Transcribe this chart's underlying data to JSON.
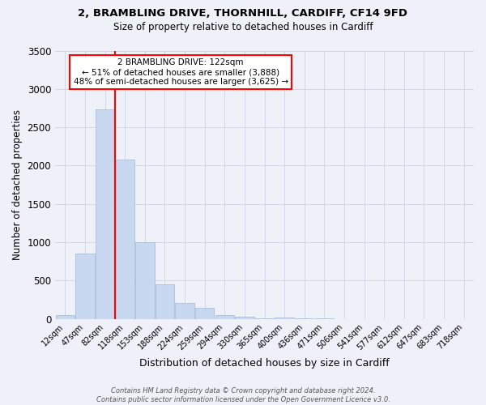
{
  "title1": "2, BRAMBLING DRIVE, THORNHILL, CARDIFF, CF14 9FD",
  "title2": "Size of property relative to detached houses in Cardiff",
  "xlabel": "Distribution of detached houses by size in Cardiff",
  "ylabel": "Number of detached properties",
  "bar_color": "#c8d8f0",
  "bar_edge_color": "#a0b8d8",
  "background_color": "#eef2f8",
  "grid_color": "#d0d8e8",
  "categories": [
    "12sqm",
    "47sqm",
    "82sqm",
    "118sqm",
    "153sqm",
    "188sqm",
    "224sqm",
    "259sqm",
    "294sqm",
    "330sqm",
    "365sqm",
    "400sqm",
    "436sqm",
    "471sqm",
    "506sqm",
    "541sqm",
    "577sqm",
    "612sqm",
    "647sqm",
    "683sqm",
    "718sqm"
  ],
  "values": [
    55,
    850,
    2730,
    2075,
    1005,
    455,
    210,
    145,
    55,
    25,
    10,
    20,
    10,
    5,
    0,
    0,
    0,
    0,
    0,
    0,
    0
  ],
  "ylim": [
    0,
    3500
  ],
  "yticks": [
    0,
    500,
    1000,
    1500,
    2000,
    2500,
    3000,
    3500
  ],
  "property_bin_index": 3,
  "annotation_title": "2 BRAMBLING DRIVE: 122sqm",
  "annotation_line1": "← 51% of detached houses are smaller (3,888)",
  "annotation_line2": "48% of semi-detached houses are larger (3,625) →",
  "annotation_box_color": "white",
  "annotation_edge_color": "red",
  "vline_color": "red",
  "footer_line1": "Contains HM Land Registry data © Crown copyright and database right 2024.",
  "footer_line2": "Contains public sector information licensed under the Open Government Licence v3.0."
}
